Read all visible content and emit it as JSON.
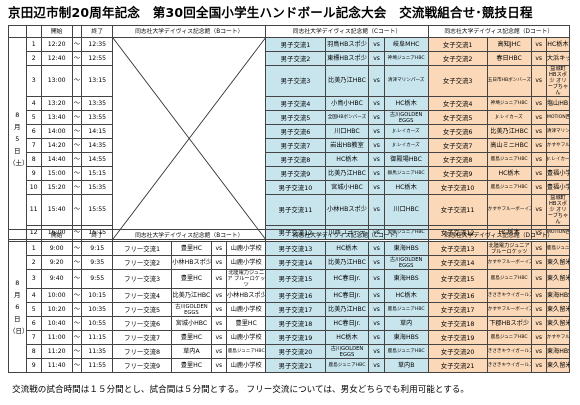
{
  "title": "京田辺市制20周年記念　第30回全国小学生ハンドボール記念大会　交流戦組合せ･競技日程",
  "headers": {
    "start": "開始",
    "end": "終了",
    "b_court": "同志社大学デイヴィス記念館（Bコート）",
    "c_court": "同志社大学デイヴィス記念館（Cコート）",
    "d_court": "同志社大学デイヴィス記念館（Dコート）"
  },
  "day1": {
    "date_label": [
      "8",
      "月",
      "5",
      "日",
      "（土）"
    ],
    "rows": [
      {
        "n": "1",
        "start": "12:20",
        "end": "12:35",
        "c": {
          "label": "男子交流1",
          "a": "羽鳥HBスポ少",
          "b": "岐阜MHC"
        },
        "d": {
          "label": "女子交流1",
          "a": "高知JHC",
          "b": "HC栃木"
        }
      },
      {
        "n": "2",
        "start": "12:40",
        "end": "12:55",
        "c": {
          "label": "男子交流2",
          "a": "東標HBスポ少",
          "b": "神埼ジュニアHBC"
        },
        "d": {
          "label": "女子交流2",
          "a": "春日HBC",
          "b": "大浜キッズ"
        }
      },
      {
        "n": "3",
        "start": "13:00",
        "end": "13:15",
        "c": {
          "label": "男子交流3",
          "a": "比美乃江HBC",
          "b": "清津マリンパーズ"
        },
        "d": {
          "label": "女子交流3",
          "a": "五日市HBボンバーズ",
          "b": "益城町HBスポ少 オリーブちゃん"
        }
      },
      {
        "n": "4",
        "start": "13:20",
        "end": "13:35",
        "c": {
          "label": "男子交流4",
          "a": "小鳥小HBC",
          "b": "HC栃木"
        },
        "d": {
          "label": "女子交流4",
          "a": "神埼ジュニアHBC",
          "b": "塩山HBスポ少"
        }
      },
      {
        "n": "5",
        "start": "13:40",
        "end": "13:55",
        "c": {
          "label": "男子交流5",
          "a": "全国HBボンバーズ",
          "b": "古川GOLDEN EGGS"
        },
        "d": {
          "label": "女子交流5",
          "a": "Jr.レイカーズ",
          "b": "MOTION西根HBC"
        }
      },
      {
        "n": "6",
        "start": "14:00",
        "end": "14:15",
        "c": {
          "label": "男子交流6",
          "a": "川口HBC",
          "b": "Jr.レイカーズ"
        },
        "d": {
          "label": "女子交流6",
          "a": "比美乃江HBC",
          "b": "清津マリンパーズ"
        }
      },
      {
        "n": "7",
        "start": "14:20",
        "end": "14:35",
        "c": {
          "label": "男子交流7",
          "a": "岩出HB教室",
          "b": "Jr.レイカーズ"
        },
        "d": {
          "label": "女子交流7",
          "a": "高山ミニHBC",
          "b": "かすやフルーボーイズ"
        }
      },
      {
        "n": "8",
        "start": "14:40",
        "end": "14:55",
        "c": {
          "label": "男子交流8",
          "a": "HC栃木",
          "b": "御殿場HBC"
        },
        "d": {
          "label": "女子交流8",
          "a": "鹿島ジュニアHBC",
          "b": "Jr.レイカーズ"
        }
      },
      {
        "n": "9",
        "start": "15:00",
        "end": "15:15",
        "c": {
          "label": "男子交流9",
          "a": "比美乃江HBC",
          "b": "群馬ジュニアHBC"
        },
        "d": {
          "label": "女子交流9",
          "a": "HC栃木",
          "b": "豊福小学校"
        }
      },
      {
        "n": "10",
        "start": "15:20",
        "end": "15:35",
        "c": {
          "label": "男子交流10",
          "a": "宮城小HBC",
          "b": "HC栃木"
        },
        "d": {
          "label": "女子交流10",
          "a": "鹿島ジュニアHBC",
          "b": "豊福小学校"
        }
      },
      {
        "n": "11",
        "start": "15:40",
        "end": "15:55",
        "c": {
          "label": "男子交流11",
          "a": "小林HBスポ少",
          "b": "川口HBC"
        },
        "d": {
          "label": "女子交流11",
          "a": "かすやフルーボーイズ",
          "b": "益城町HBスポ少 オリーブちゃん"
        }
      },
      {
        "n": "12",
        "start": "16:00",
        "end": "16:15",
        "c": {
          "label": "男子交流12",
          "a": "川西コヨーテ",
          "b": "愛媛ジュニアHBC"
        },
        "d": {
          "label": "女子交流12",
          "a": "HC栃木",
          "b": "MOTION西根HBC"
        }
      }
    ]
  },
  "day2": {
    "date_label": [
      "8",
      "月",
      "6",
      "日",
      "（日）"
    ],
    "rows": [
      {
        "n": "1",
        "start": "9:00",
        "end": "9:15",
        "b": {
          "label": "フリー交流1",
          "a": "豊里HC",
          "b": "山鹿小学校"
        },
        "c": {
          "label": "男子交流13",
          "a": "HC栃木",
          "b": "東海HBS"
        },
        "d": {
          "label": "女子交流13",
          "a": "北陸電力ジュニア ブルーロケッツ",
          "b": "鹿島ジュニアHBC"
        }
      },
      {
        "n": "2",
        "start": "9:20",
        "end": "9:35",
        "b": {
          "label": "フリー交流2",
          "a": "小林HBスポ少",
          "b": "山鹿小学校"
        },
        "c": {
          "label": "男子交流14",
          "a": "比美乃江HBC",
          "b": "古川GOLDEN EGGS"
        },
        "d": {
          "label": "女子交流14",
          "a": "かすやフルーボーイズ",
          "b": "東久留米HBC"
        }
      },
      {
        "n": "3",
        "start": "9:40",
        "end": "9:55",
        "b": {
          "label": "フリー交流3",
          "a": "豊里HC",
          "b": "北陸電力ジュニア ブルーロケッツ"
        },
        "c": {
          "label": "男子交流15",
          "a": "HC春日Jr.",
          "b": "東海HBS"
        },
        "d": {
          "label": "女子交流15",
          "a": "鹿島ジュニアHBC",
          "b": "東久留米HBC"
        }
      },
      {
        "n": "4",
        "start": "10:00",
        "end": "10:15",
        "b": {
          "label": "フリー交流4",
          "a": "比美乃江HBC",
          "b": "小林HBスポ少"
        },
        "c": {
          "label": "男子交流16",
          "a": "HC春日Jr.",
          "b": "HC栃木"
        },
        "d": {
          "label": "女子交流16",
          "a": "きさきキウイガールズ",
          "b": "東海HBS"
        }
      },
      {
        "n": "5",
        "start": "10:20",
        "end": "10:35",
        "b": {
          "label": "フリー交流5",
          "a": "古川GOLDEN EGGS",
          "b": "山鹿小学校"
        },
        "c": {
          "label": "男子交流17",
          "a": "比美乃江HBC",
          "b": "鹿島ジュニアHBC"
        },
        "d": {
          "label": "女子交流17",
          "a": "かすやフルーボーイズ",
          "b": "東久留米HBC"
        }
      },
      {
        "n": "6",
        "start": "10:40",
        "end": "10:55",
        "b": {
          "label": "フリー交流6",
          "a": "宮城小HBC",
          "b": "豊里HC"
        },
        "c": {
          "label": "男子交流18",
          "a": "HC春日Jr.",
          "b": "草内"
        },
        "d": {
          "label": "女子交流18",
          "a": "下郡HBスポ少",
          "b": "東久留米HBC"
        }
      },
      {
        "n": "7",
        "start": "11:00",
        "end": "11:15",
        "b": {
          "label": "フリー交流7",
          "a": "豊里HC",
          "b": "山鹿小学校"
        },
        "c": {
          "label": "男子交流19",
          "a": "HC栃木",
          "b": "東海HBS"
        },
        "d": {
          "label": "女子交流19",
          "a": "鹿島ジュニアHBC",
          "b": "かすやフルーボーイズ"
        }
      },
      {
        "n": "8",
        "start": "11:20",
        "end": "11:35",
        "b": {
          "label": "フリー交流8",
          "a": "草内A",
          "b": "鹿島ジュニアHBC"
        },
        "c": {
          "label": "男子交流20",
          "a": "古川GOLDEN EGGS",
          "b": "鹿島ジュニアHBC"
        },
        "d": {
          "label": "女子交流20",
          "a": "きさきキウイガールズ",
          "b": "東海HBS"
        }
      },
      {
        "n": "9",
        "start": "11:40",
        "end": "11:55",
        "b": {
          "label": "フリー交流9",
          "a": "豊里HC",
          "b": "山鹿小学校"
        },
        "c": {
          "label": "男子交流21",
          "a": "鹿島ジュニアHBC",
          "b": "草内B"
        },
        "d": {
          "label": "女子交流21",
          "a": "きさきキウイガールズ",
          "b": "東久留米HBC"
        }
      }
    ]
  },
  "vs": "vs",
  "time_sep": "～",
  "note": "交流戦の試合時間は１５分間とし、試合間は５分間とする。 フリー交流については、男女どちらでも利用可能とする。",
  "colors": {
    "boys": "#c8e5ee",
    "girls": "#fbd9b8"
  }
}
